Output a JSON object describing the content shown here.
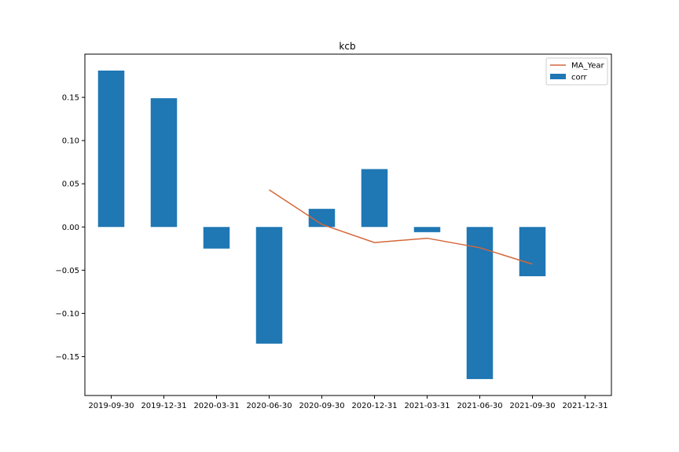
{
  "chart_data": {
    "type": "bar",
    "title": "kcb",
    "xlabel": "",
    "ylabel": "",
    "categories": [
      "2019-09-30",
      "2019-12-31",
      "2020-03-31",
      "2020-06-30",
      "2020-09-30",
      "2020-12-31",
      "2021-03-31",
      "2021-06-30",
      "2021-09-30",
      "2021-12-31"
    ],
    "series": [
      {
        "name": "corr",
        "type": "bar",
        "color": "#1f77b4",
        "values": [
          0.181,
          0.149,
          -0.025,
          -0.135,
          0.021,
          0.067,
          -0.006,
          -0.176,
          -0.057,
          null
        ]
      },
      {
        "name": "MA_Year",
        "type": "line",
        "color": "#d4673a",
        "values": [
          null,
          null,
          null,
          0.043,
          0.003,
          -0.018,
          -0.013,
          -0.024,
          -0.043,
          null
        ]
      }
    ],
    "ylim": [
      -0.195,
      0.2
    ],
    "yticks": [
      -0.15,
      -0.1,
      -0.05,
      0.0,
      0.05,
      0.1,
      0.15
    ],
    "ytick_labels": [
      "−0.15",
      "−0.10",
      "−0.05",
      "0.00",
      "0.05",
      "0.10",
      "0.15"
    ],
    "grid": false,
    "legend_position": "top-right"
  }
}
